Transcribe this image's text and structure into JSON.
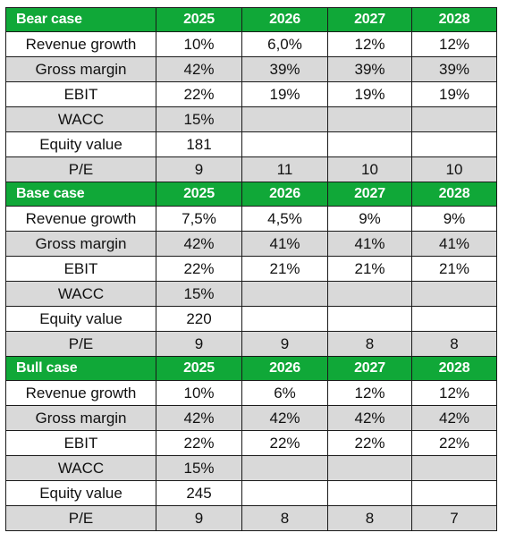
{
  "years": [
    "2025",
    "2026",
    "2027",
    "2028"
  ],
  "colors": {
    "header_bg": "#10a838",
    "header_text": "#ffffff",
    "shaded_row": "#d9d9d9",
    "border": "#1a1a1a"
  },
  "scenarios": [
    {
      "name": "Bear case",
      "rows": [
        {
          "label": "Revenue growth",
          "values": [
            "10%",
            "6,0%",
            "12%",
            "12%"
          ]
        },
        {
          "label": "Gross margin",
          "values": [
            "42%",
            "39%",
            "39%",
            "39%"
          ]
        },
        {
          "label": "EBIT",
          "values": [
            "22%",
            "19%",
            "19%",
            "19%"
          ]
        },
        {
          "label": "WACC",
          "values": [
            "15%",
            "",
            "",
            ""
          ]
        },
        {
          "label": "Equity value",
          "values": [
            "181",
            "",
            "",
            ""
          ]
        },
        {
          "label": "P/E",
          "values": [
            "9",
            "11",
            "10",
            "10"
          ]
        }
      ]
    },
    {
      "name": "Base case",
      "rows": [
        {
          "label": "Revenue growth",
          "values": [
            "7,5%",
            "4,5%",
            "9%",
            "9%"
          ]
        },
        {
          "label": "Gross margin",
          "values": [
            "42%",
            "41%",
            "41%",
            "41%"
          ]
        },
        {
          "label": "EBIT",
          "values": [
            "22%",
            "21%",
            "21%",
            "21%"
          ]
        },
        {
          "label": "WACC",
          "values": [
            "15%",
            "",
            "",
            ""
          ]
        },
        {
          "label": "Equity value",
          "values": [
            "220",
            "",
            "",
            ""
          ]
        },
        {
          "label": "P/E",
          "values": [
            "9",
            "9",
            "8",
            "8"
          ]
        }
      ]
    },
    {
      "name": "Bull case",
      "rows": [
        {
          "label": "Revenue growth",
          "values": [
            "10%",
            "6%",
            "12%",
            "12%"
          ]
        },
        {
          "label": "Gross margin",
          "values": [
            "42%",
            "42%",
            "42%",
            "42%"
          ]
        },
        {
          "label": "EBIT",
          "values": [
            "22%",
            "22%",
            "22%",
            "22%"
          ]
        },
        {
          "label": "WACC",
          "values": [
            "15%",
            "",
            "",
            ""
          ]
        },
        {
          "label": "Equity value",
          "values": [
            "245",
            "",
            "",
            ""
          ]
        },
        {
          "label": "P/E",
          "values": [
            "9",
            "8",
            "8",
            "7"
          ]
        }
      ]
    }
  ]
}
